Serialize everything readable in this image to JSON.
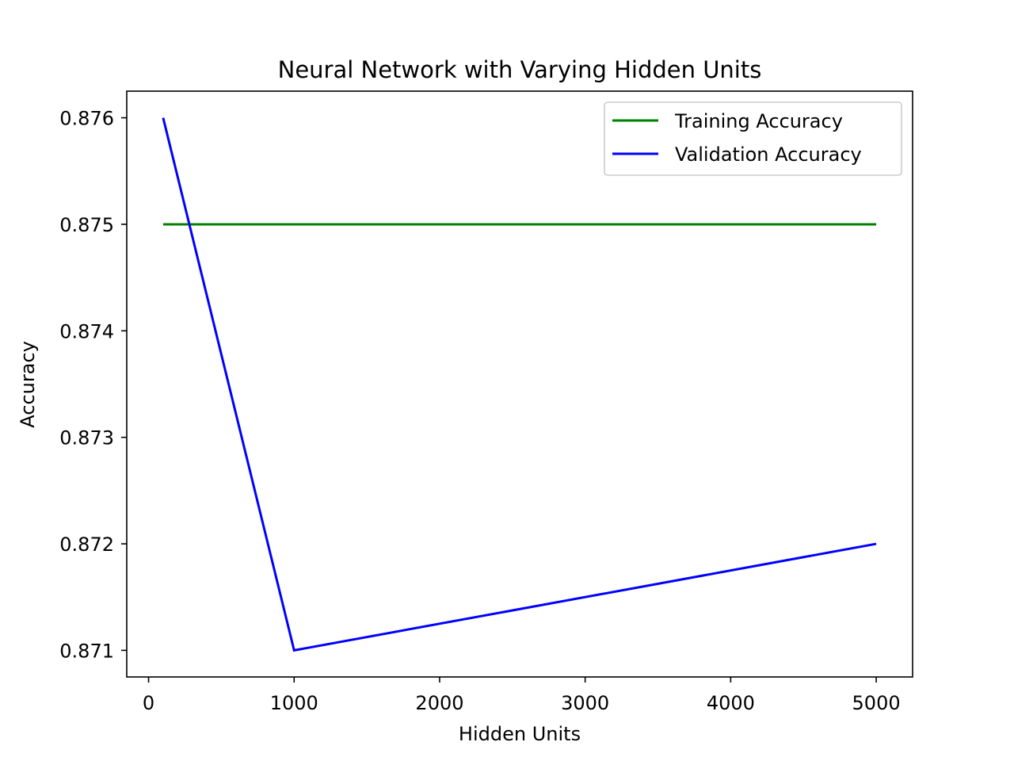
{
  "chart_data": {
    "type": "line",
    "title": "Neural Network with Varying Hidden Units",
    "xlabel": "Hidden Units",
    "ylabel": "Accuracy",
    "x": [
      100,
      1000,
      5000
    ],
    "xlim": [
      -150,
      5250
    ],
    "ylim": [
      0.87075,
      0.87625
    ],
    "xticks": [
      0,
      1000,
      2000,
      3000,
      4000,
      5000
    ],
    "xtick_labels": [
      "0",
      "1000",
      "2000",
      "3000",
      "4000",
      "5000"
    ],
    "yticks": [
      0.871,
      0.872,
      0.873,
      0.874,
      0.875,
      0.876
    ],
    "ytick_labels": [
      "0.871",
      "0.872",
      "0.873",
      "0.874",
      "0.875",
      "0.876"
    ],
    "grid": false,
    "legend_position": "top-right",
    "series": [
      {
        "name": "Training Accuracy",
        "color": "#008000",
        "values": [
          0.875,
          0.875,
          0.875
        ]
      },
      {
        "name": "Validation Accuracy",
        "color": "#0000ff",
        "values": [
          0.876,
          0.871,
          0.872
        ]
      }
    ]
  }
}
